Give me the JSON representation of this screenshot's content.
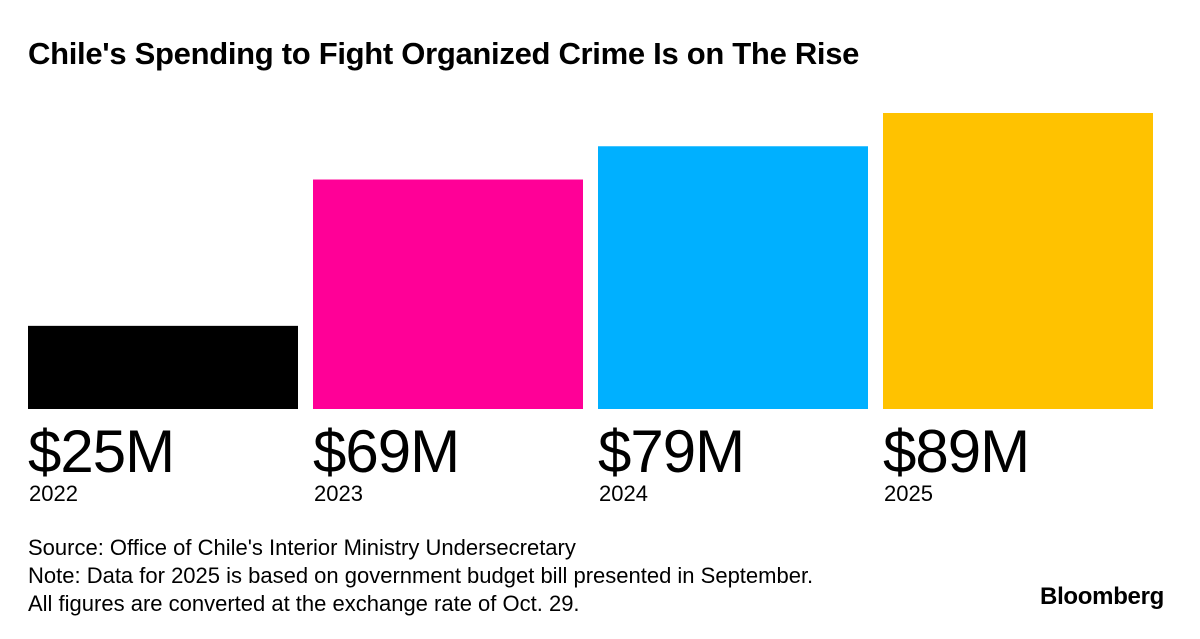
{
  "chart_data": {
    "type": "bar",
    "title": "Chile's Spending to Fight Organized Crime Is on The Rise",
    "categories": [
      "2022",
      "2023",
      "2024",
      "2025"
    ],
    "values": [
      25,
      69,
      79,
      89
    ],
    "value_labels": [
      "$25M",
      "$69M",
      "$79M",
      "$89M"
    ],
    "colors": [
      "#000000",
      "#ff0097",
      "#00b0ff",
      "#ffc200"
    ],
    "xlabel": "",
    "ylabel": "",
    "ylim": [
      0,
      89
    ],
    "grid": false,
    "legend": "none"
  },
  "footer": {
    "source": "Source: Office of Chile's Interior Ministry Undersecretary",
    "note": "Note: Data for 2025 is based on government budget bill presented in September.",
    "conversion": "All figures are converted at the exchange rate of Oct. 29."
  },
  "brand": "Bloomberg"
}
